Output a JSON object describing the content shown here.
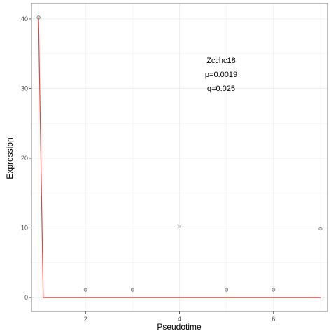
{
  "chart_data": {
    "type": "scatter",
    "xlabel": "Pseudotime",
    "ylabel": "Expression",
    "xlim": [
      0.85,
      7.15
    ],
    "ylim": [
      -2.0,
      42.2
    ],
    "x_ticks": [
      2,
      4,
      6
    ],
    "x_tick_labels": [
      "2",
      "4",
      "6"
    ],
    "y_ticks": [
      0,
      10,
      20,
      30,
      40
    ],
    "y_tick_labels": [
      "0",
      "10",
      "20",
      "30",
      "40"
    ],
    "grid": true,
    "annotations": [
      "Zcchc18",
      "p=0.0019",
      "q=0.025"
    ],
    "points": {
      "x": [
        1,
        2,
        3,
        4,
        5,
        6,
        7
      ],
      "y": [
        40.2,
        1.1,
        1.1,
        10.2,
        1.1,
        1.1,
        9.9
      ]
    },
    "fit_line": {
      "color": "#e8433a",
      "x": [
        1,
        1.1,
        2,
        3,
        4,
        5,
        6,
        7
      ],
      "y": [
        40.2,
        0,
        0,
        0,
        0,
        0,
        0,
        0
      ]
    },
    "colors": {
      "panel_border": "#7f7f7f",
      "grid": "#ebebeb",
      "point_stroke": "#555555",
      "point_fill": "#bdbdbd"
    }
  }
}
